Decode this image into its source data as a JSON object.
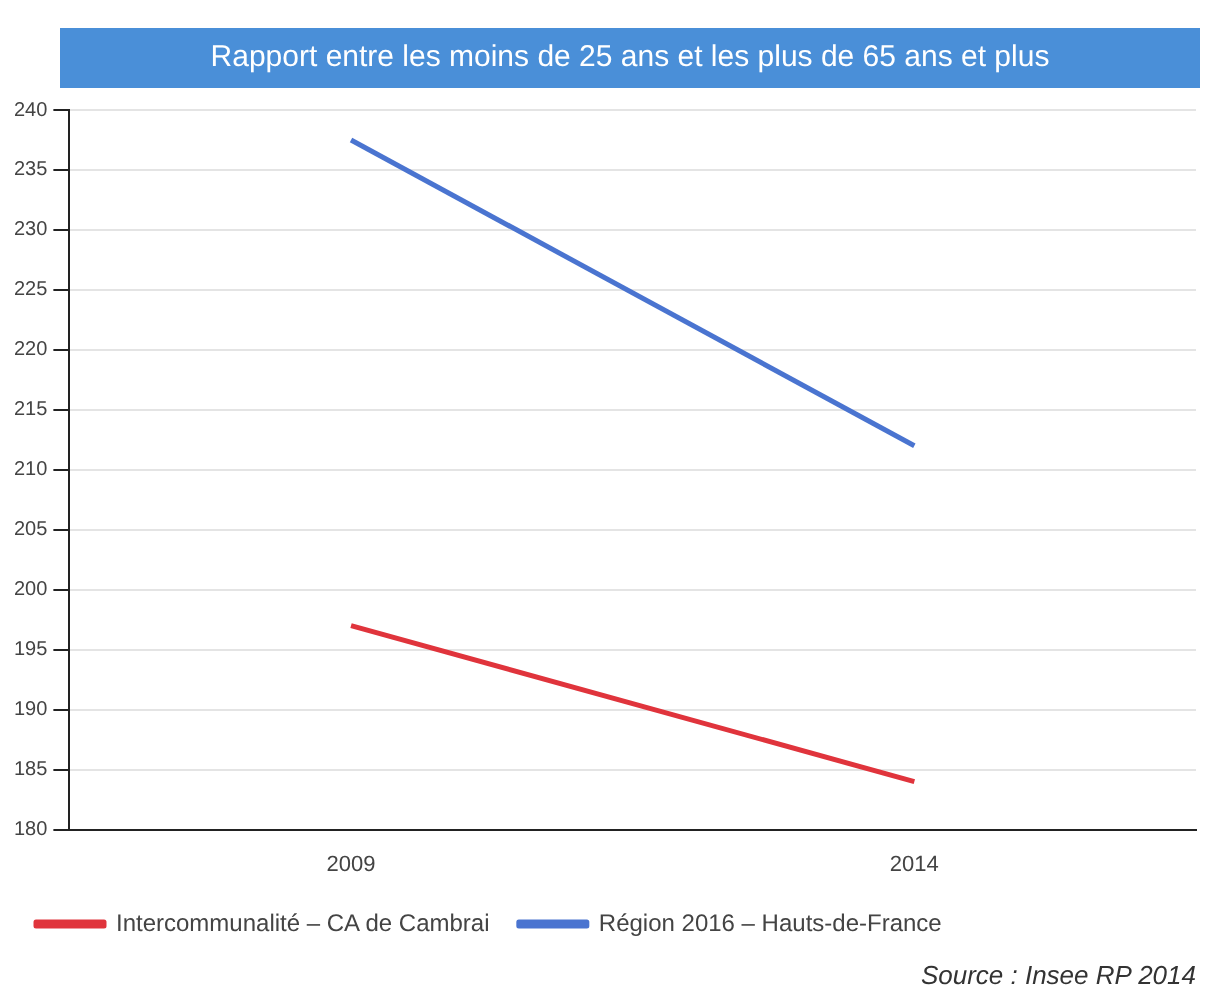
{
  "chart_data": {
    "type": "line",
    "title": "Rapport entre les moins de 25 ans et les plus de 65 ans et plus",
    "categories": [
      "2009",
      "2014"
    ],
    "series": [
      {
        "name": "Intercommunalité – CA de Cambrai",
        "color": "#e0343c",
        "values": [
          197,
          184
        ]
      },
      {
        "name": "Région 2016 – Hauts-de-France",
        "color": "#4a74d0",
        "values": [
          237.5,
          212
        ]
      }
    ],
    "ylim": [
      180,
      240
    ],
    "yticks": [
      180,
      185,
      190,
      195,
      200,
      205,
      210,
      215,
      220,
      225,
      230,
      235,
      240
    ],
    "grid": "y",
    "legend": "bottom",
    "marker": "none",
    "line_style": "solid",
    "annotations": [
      "Source : Insee RP 2014"
    ]
  }
}
